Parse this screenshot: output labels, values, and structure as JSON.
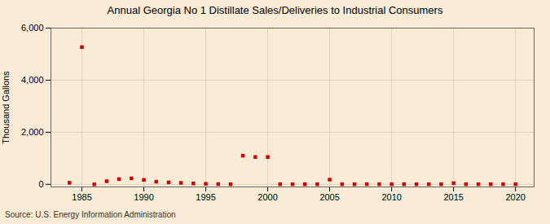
{
  "chart_data": {
    "type": "scatter",
    "title": "Annual Georgia No 1 Distillate Sales/Deliveries to Industrial Consumers",
    "ylabel": "Thousand Gallons",
    "source": "Source: U.S. Energy Information Administration",
    "x": [
      1984,
      1985,
      1986,
      1987,
      1988,
      1989,
      1990,
      1991,
      1992,
      1993,
      1994,
      1995,
      1996,
      1997,
      1998,
      1999,
      2000,
      2001,
      2002,
      2003,
      2004,
      2005,
      2006,
      2007,
      2008,
      2009,
      2010,
      2011,
      2012,
      2013,
      2014,
      2015,
      2016,
      2017,
      2018,
      2019,
      2020
    ],
    "values": [
      60,
      5270,
      0,
      120,
      200,
      230,
      170,
      100,
      75,
      55,
      35,
      20,
      10,
      5,
      1100,
      1050,
      1050,
      5,
      5,
      5,
      5,
      180,
      5,
      5,
      5,
      5,
      5,
      5,
      5,
      5,
      5,
      45,
      5,
      5,
      5,
      5,
      5
    ],
    "color": "#cc0000",
    "marker": "square",
    "xlim": [
      1982.5,
      2021.5
    ],
    "xticks": [
      1985,
      1990,
      1995,
      2000,
      2005,
      2010,
      2015,
      2020
    ],
    "ylim": [
      -100,
      6000
    ],
    "yticks": [
      0,
      {
        "value": 2000,
        "label": "2,000"
      },
      {
        "value": 4000,
        "label": "4,000"
      },
      {
        "value": 6000,
        "label": "6,000"
      }
    ],
    "grid": true
  }
}
